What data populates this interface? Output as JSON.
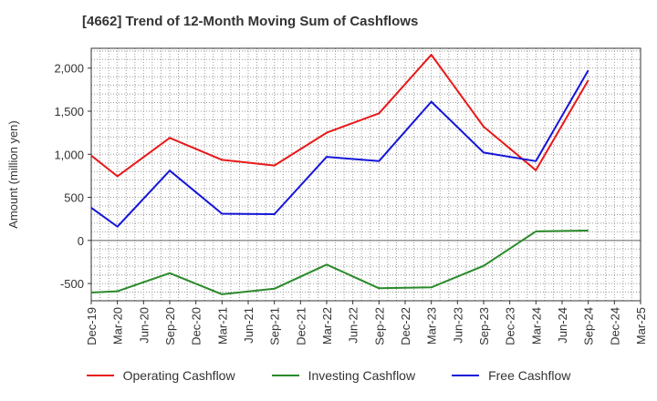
{
  "chart_data": {
    "type": "line",
    "title": "[4662]  Trend of 12-Month Moving Sum of Cashflows",
    "xlabel": "",
    "ylabel": "Amount (million yen)",
    "categories": [
      "Dec-19",
      "Mar-20",
      "Jun-20",
      "Sep-20",
      "Dec-20",
      "Mar-21",
      "Jun-21",
      "Sep-21",
      "Dec-21",
      "Mar-22",
      "Jun-22",
      "Sep-22",
      "Dec-22",
      "Mar-23",
      "Jun-23",
      "Sep-23",
      "Dec-23",
      "Mar-24",
      "Jun-24",
      "Sep-24",
      "Dec-24",
      "Mar-25"
    ],
    "ylim": [
      -700,
      2230
    ],
    "yticks": [
      -500,
      0,
      500,
      1000,
      1500,
      2000
    ],
    "ytick_labels": [
      "-500",
      "0",
      "500",
      "1,000",
      "1,500",
      "2,000"
    ],
    "grid": true,
    "legend_position": "bottom",
    "series": [
      {
        "name": "Operating Cashflow",
        "color": "#e8191a",
        "values": [
          985,
          745,
          null,
          1190,
          null,
          935,
          null,
          870,
          null,
          1250,
          null,
          1475,
          null,
          2155,
          null,
          1320,
          null,
          815,
          null,
          1860,
          null,
          null
        ]
      },
      {
        "name": "Investing Cashflow",
        "color": "#2a8a2a",
        "values": [
          -605,
          -590,
          null,
          -380,
          null,
          -625,
          null,
          -560,
          null,
          -280,
          null,
          -555,
          null,
          -545,
          null,
          -295,
          null,
          105,
          null,
          115,
          null,
          null
        ]
      },
      {
        "name": "Free Cashflow",
        "color": "#1515d9",
        "values": [
          380,
          160,
          null,
          810,
          null,
          310,
          null,
          305,
          null,
          970,
          null,
          920,
          null,
          1610,
          null,
          1020,
          null,
          920,
          null,
          1975,
          null,
          null
        ]
      }
    ]
  }
}
